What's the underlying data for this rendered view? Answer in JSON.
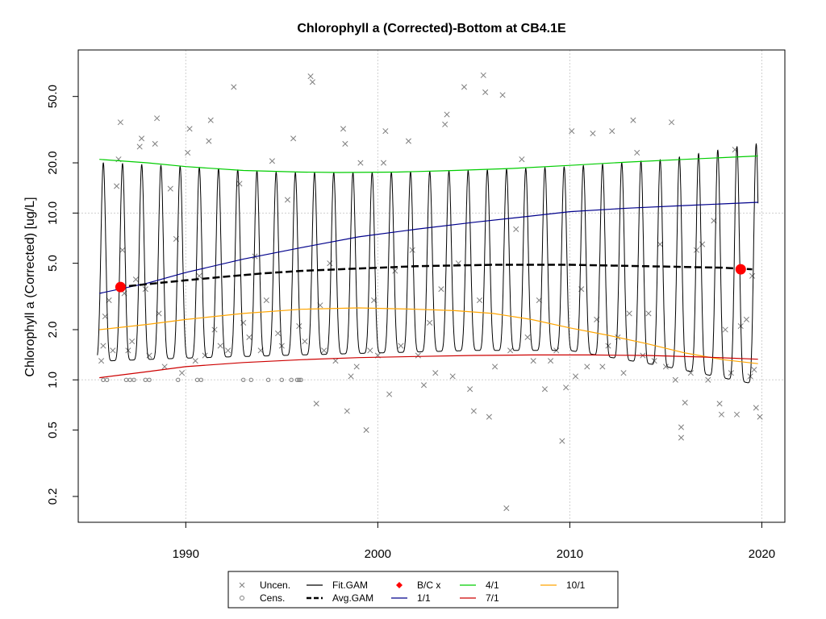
{
  "chart_data": {
    "type": "line",
    "title": "Chlorophyll a (Corrected)-Bottom at CB4.1E",
    "ylabel": "Chlorophyll a (Corrected) [ug/L]",
    "xlabel": "",
    "y_scale": "log",
    "xlim": [
      1984.4,
      2021.2
    ],
    "ylim": [
      0.14,
      95
    ],
    "x_ticks": [
      1990,
      2000,
      2010,
      2020
    ],
    "x_tick_labels": [
      "1990",
      "2000",
      "2010",
      "2020"
    ],
    "y_ticks": [
      0.2,
      0.5,
      1.0,
      2.0,
      5.0,
      10.0,
      20.0,
      50.0
    ],
    "y_tick_labels": [
      "0.2",
      "0.5",
      "1.0",
      "2.0",
      "5.0",
      "10.0",
      "20.0",
      "50.0"
    ],
    "grid": true,
    "legend": {
      "position": "bottom",
      "entries": [
        {
          "label": "Uncen.",
          "symbol": "x",
          "color": "#7f7f7f"
        },
        {
          "label": "Cens.",
          "symbol": "circle-open",
          "color": "#7f7f7f"
        },
        {
          "label": "Fit.GAM",
          "symbol": "line",
          "color": "#000000"
        },
        {
          "label": "Avg.GAM",
          "symbol": "dash-line",
          "color": "#000000"
        },
        {
          "label": "B/C x",
          "symbol": "diamond",
          "color": "#ff0000"
        },
        {
          "label": "1/1",
          "symbol": "line",
          "color": "#00008b"
        },
        {
          "label": "4/1",
          "symbol": "line",
          "color": "#00cd00"
        },
        {
          "label": "7/1",
          "symbol": "line",
          "color": "#cd0000"
        },
        {
          "label": "10/1",
          "symbol": "line",
          "color": "#ffa500"
        }
      ]
    },
    "series": [
      {
        "name": "4/1",
        "color": "#00cd00",
        "x": [
          1985.5,
          1988,
          1990,
          1993,
          1996,
          1998,
          2001,
          2004,
          2007,
          2010,
          2013,
          2016,
          2019.8
        ],
        "y": [
          21.0,
          20.0,
          19.0,
          18.0,
          17.6,
          17.5,
          17.6,
          18.0,
          18.5,
          19.3,
          20.2,
          21.0,
          22.0
        ]
      },
      {
        "name": "1/1",
        "color": "#00008b",
        "x": [
          1985.5,
          1988,
          1990,
          1993,
          1996,
          1999,
          2002,
          2005,
          2008,
          2010,
          2013,
          2016,
          2019.8
        ],
        "y": [
          3.3,
          3.8,
          4.4,
          5.3,
          6.2,
          7.2,
          8.0,
          8.8,
          9.6,
          10.2,
          10.7,
          11.1,
          11.6
        ]
      },
      {
        "name": "10/1",
        "color": "#ffa500",
        "x": [
          1985.5,
          1988,
          1990,
          1993,
          1996,
          1999,
          2002,
          2004,
          2006,
          2008,
          2010,
          2012,
          2014,
          2016,
          2018,
          2019.8
        ],
        "y": [
          2.0,
          2.15,
          2.3,
          2.5,
          2.65,
          2.7,
          2.65,
          2.6,
          2.5,
          2.3,
          2.05,
          1.85,
          1.65,
          1.45,
          1.32,
          1.25
        ]
      },
      {
        "name": "7/1",
        "color": "#cd0000",
        "x": [
          1985.5,
          1988,
          1990,
          1993,
          1996,
          1999,
          2002,
          2005,
          2008,
          2011,
          2014,
          2017,
          2019.8
        ],
        "y": [
          1.03,
          1.12,
          1.2,
          1.27,
          1.32,
          1.36,
          1.38,
          1.4,
          1.41,
          1.41,
          1.4,
          1.37,
          1.33
        ]
      },
      {
        "name": "Avg.GAM",
        "color": "#000000",
        "x": [
          1986.5,
          1988,
          1990,
          1992,
          1994,
          1996,
          1998,
          2000,
          2002,
          2004,
          2006,
          2008,
          2010,
          2012,
          2014,
          2016,
          2018,
          2019.5
        ],
        "y": [
          3.6,
          3.75,
          3.95,
          4.15,
          4.35,
          4.5,
          4.6,
          4.7,
          4.8,
          4.85,
          4.9,
          4.9,
          4.9,
          4.85,
          4.8,
          4.75,
          4.7,
          4.6
        ]
      },
      {
        "name": "Fit.GAM",
        "color": "#000000",
        "x_start": 1985.4,
        "x_end": 2019.8,
        "peaks": {
          "x": [
            1986,
            1990,
            1995,
            2000,
            2005,
            2010,
            2015,
            2019.5
          ],
          "y": [
            20,
            19,
            17.5,
            17.5,
            18,
            19,
            21,
            26
          ]
        },
        "troughs": {
          "x": [
            1986,
            1990,
            1995,
            2000,
            2005,
            2010,
            2015,
            2019.5
          ],
          "y": [
            1.3,
            1.35,
            1.4,
            1.45,
            1.5,
            1.5,
            1.2,
            0.95
          ]
        }
      }
    ],
    "bc_points": {
      "name": "B/C x",
      "x": [
        1986.6,
        2018.9
      ],
      "y": [
        3.6,
        4.6
      ],
      "color": "#ff0000"
    },
    "observations_uncensored": {
      "name": "Uncen.",
      "color": "#7f7f7f",
      "points": [
        [
          1985.6,
          1.3
        ],
        [
          1985.7,
          1.6
        ],
        [
          1985.8,
          2.4
        ],
        [
          1986.0,
          3.0
        ],
        [
          1986.2,
          1.5
        ],
        [
          1986.4,
          14.5
        ],
        [
          1986.5,
          21.0
        ],
        [
          1986.6,
          35.0
        ],
        [
          1986.7,
          6.0
        ],
        [
          1986.8,
          3.3
        ],
        [
          1987.0,
          1.5
        ],
        [
          1987.2,
          1.7
        ],
        [
          1987.4,
          4.0
        ],
        [
          1987.6,
          25.0
        ],
        [
          1987.7,
          28.0
        ],
        [
          1987.9,
          3.5
        ],
        [
          1988.1,
          1.4
        ],
        [
          1988.4,
          26.0
        ],
        [
          1988.5,
          37.0
        ],
        [
          1988.6,
          2.5
        ],
        [
          1988.9,
          1.2
        ],
        [
          1989.2,
          14.0
        ],
        [
          1989.5,
          7.0
        ],
        [
          1989.8,
          1.1
        ],
        [
          1990.2,
          32.0
        ],
        [
          1990.1,
          23.0
        ],
        [
          1990.5,
          1.3
        ],
        [
          1990.7,
          4.2
        ],
        [
          1991.0,
          1.4
        ],
        [
          1991.2,
          27.0
        ],
        [
          1991.3,
          36.0
        ],
        [
          1991.5,
          2.0
        ],
        [
          1991.8,
          1.6
        ],
        [
          1992.2,
          1.5
        ],
        [
          1992.5,
          57.0
        ],
        [
          1992.8,
          15.0
        ],
        [
          1993.0,
          2.2
        ],
        [
          1993.3,
          1.8
        ],
        [
          1993.6,
          5.5
        ],
        [
          1993.9,
          1.5
        ],
        [
          1994.2,
          3.0
        ],
        [
          1994.5,
          20.5
        ],
        [
          1994.8,
          1.9
        ],
        [
          1995.0,
          1.6
        ],
        [
          1995.3,
          12.0
        ],
        [
          1995.6,
          28.0
        ],
        [
          1995.9,
          2.1
        ],
        [
          1996.2,
          1.7
        ],
        [
          1996.5,
          66.0
        ],
        [
          1996.6,
          61.0
        ],
        [
          1996.8,
          0.72
        ],
        [
          1997.0,
          2.8
        ],
        [
          1997.2,
          1.5
        ],
        [
          1997.5,
          5.0
        ],
        [
          1997.8,
          1.3
        ],
        [
          1998.2,
          32.0
        ],
        [
          1998.3,
          26.0
        ],
        [
          1998.4,
          0.65
        ],
        [
          1998.6,
          1.05
        ],
        [
          1998.9,
          1.2
        ],
        [
          1999.1,
          20.0
        ],
        [
          1999.4,
          0.5
        ],
        [
          1999.6,
          1.5
        ],
        [
          1999.8,
          3.0
        ],
        [
          2000.0,
          1.4
        ],
        [
          2000.3,
          20.0
        ],
        [
          2000.4,
          31.0
        ],
        [
          2000.6,
          0.82
        ],
        [
          2000.9,
          4.5
        ],
        [
          2001.2,
          1.6
        ],
        [
          2001.6,
          27.0
        ],
        [
          2001.8,
          6.0
        ],
        [
          2002.1,
          1.4
        ],
        [
          2002.4,
          0.93
        ],
        [
          2002.7,
          2.2
        ],
        [
          2003.0,
          1.1
        ],
        [
          2003.3,
          3.5
        ],
        [
          2003.5,
          34.0
        ],
        [
          2003.6,
          39.0
        ],
        [
          2003.9,
          1.05
        ],
        [
          2004.2,
          5.0
        ],
        [
          2004.5,
          57.0
        ],
        [
          2004.8,
          0.88
        ],
        [
          2005.0,
          0.65
        ],
        [
          2005.3,
          3.0
        ],
        [
          2005.5,
          67.0
        ],
        [
          2005.6,
          53.0
        ],
        [
          2005.8,
          0.6
        ],
        [
          2006.1,
          1.2
        ],
        [
          2006.5,
          51.0
        ],
        [
          2006.7,
          0.17
        ],
        [
          2006.9,
          1.5
        ],
        [
          2007.2,
          8.0
        ],
        [
          2007.5,
          21.0
        ],
        [
          2007.8,
          1.8
        ],
        [
          2008.1,
          1.3
        ],
        [
          2008.4,
          3.0
        ],
        [
          2008.7,
          0.88
        ],
        [
          2009.0,
          1.3
        ],
        [
          2009.3,
          1.5
        ],
        [
          2009.6,
          0.43
        ],
        [
          2009.8,
          0.9
        ],
        [
          2010.1,
          31.0
        ],
        [
          2010.3,
          1.05
        ],
        [
          2010.6,
          3.5
        ],
        [
          2010.9,
          1.2
        ],
        [
          2011.2,
          30.0
        ],
        [
          2011.4,
          2.3
        ],
        [
          2011.7,
          1.2
        ],
        [
          2012.0,
          1.6
        ],
        [
          2012.2,
          31.0
        ],
        [
          2012.5,
          1.8
        ],
        [
          2012.8,
          1.1
        ],
        [
          2013.1,
          2.5
        ],
        [
          2013.3,
          36.0
        ],
        [
          2013.5,
          23.0
        ],
        [
          2013.8,
          1.4
        ],
        [
          2014.1,
          2.5
        ],
        [
          2014.4,
          1.3
        ],
        [
          2014.7,
          6.5
        ],
        [
          2015.0,
          1.2
        ],
        [
          2015.3,
          35.0
        ],
        [
          2015.5,
          1.0
        ],
        [
          2015.8,
          0.45
        ],
        [
          2015.8,
          0.52
        ],
        [
          2016.0,
          0.73
        ],
        [
          2016.3,
          1.1
        ],
        [
          2016.6,
          6.0
        ],
        [
          2016.9,
          6.5
        ],
        [
          2017.2,
          1.0
        ],
        [
          2017.5,
          9.0
        ],
        [
          2017.8,
          0.72
        ],
        [
          2017.9,
          0.62
        ],
        [
          2018.1,
          2.0
        ],
        [
          2018.4,
          1.1
        ],
        [
          2018.6,
          24.0
        ],
        [
          2018.7,
          0.62
        ],
        [
          2018.9,
          2.1
        ],
        [
          2019.2,
          2.3
        ],
        [
          2019.4,
          1.05
        ],
        [
          2019.6,
          1.15
        ],
        [
          2019.7,
          0.68
        ],
        [
          2019.9,
          0.6
        ],
        [
          2019.5,
          4.2
        ]
      ]
    },
    "observations_censored": {
      "name": "Cens.",
      "color": "#7f7f7f",
      "points": [
        [
          1985.7,
          1.0
        ],
        [
          1985.9,
          1.0
        ],
        [
          1986.9,
          1.0
        ],
        [
          1987.1,
          1.0
        ],
        [
          1987.3,
          1.0
        ],
        [
          1987.9,
          1.0
        ],
        [
          1988.1,
          1.0
        ],
        [
          1989.6,
          1.0
        ],
        [
          1990.6,
          1.0
        ],
        [
          1990.8,
          1.0
        ],
        [
          1993.0,
          1.0
        ],
        [
          1993.4,
          1.0
        ],
        [
          1994.3,
          1.0
        ],
        [
          1995.0,
          1.0
        ],
        [
          1995.5,
          1.0
        ],
        [
          1995.8,
          1.0
        ],
        [
          1995.9,
          1.0
        ],
        [
          1996.0,
          1.0
        ]
      ]
    }
  }
}
